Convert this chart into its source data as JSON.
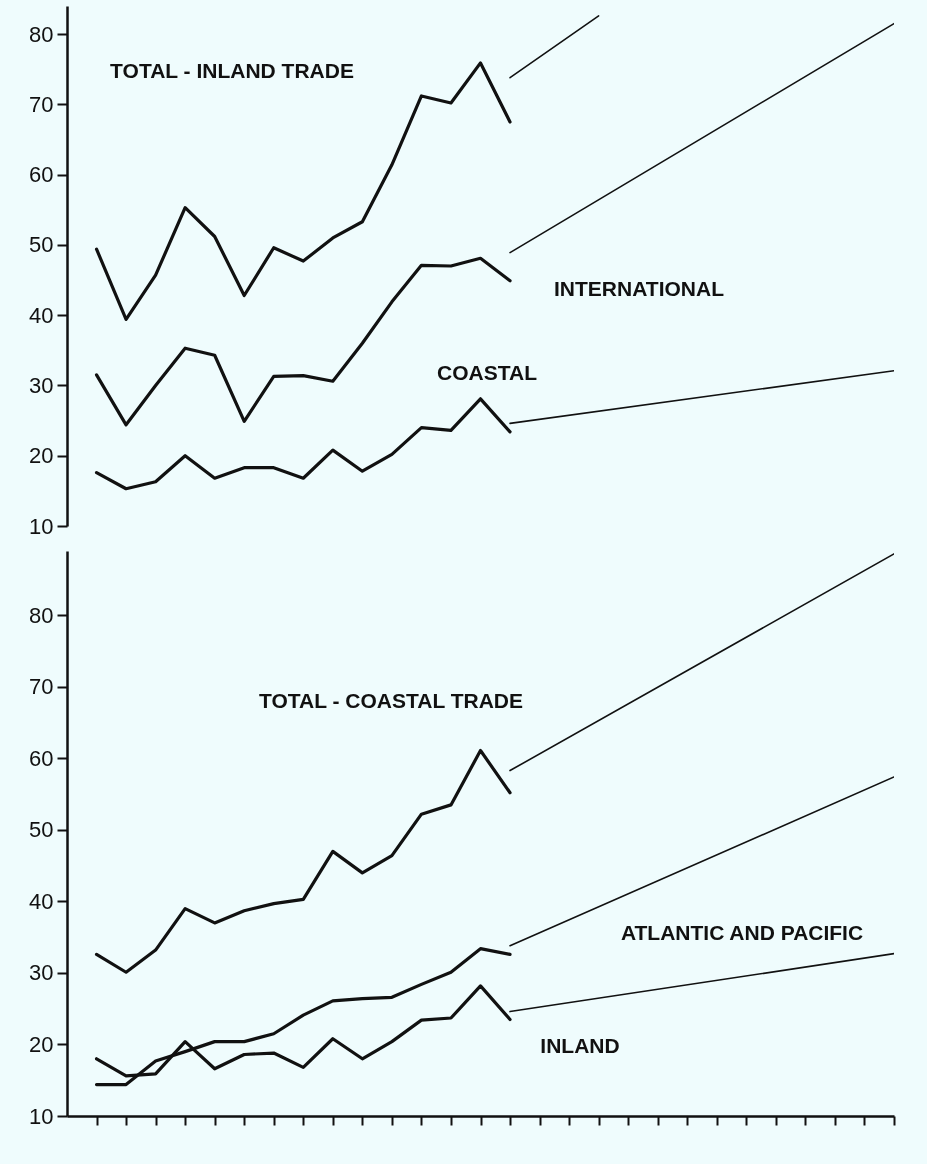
{
  "chart_data": [
    {
      "type": "line",
      "categories": [
        null,
        null,
        null,
        null,
        null,
        null,
        null,
        null,
        null,
        null,
        null,
        null,
        null,
        null,
        null,
        null,
        null,
        null,
        null,
        null,
        null,
        null,
        null,
        null,
        null,
        null,
        null,
        null
      ],
      "ylim": [
        10,
        84
      ],
      "yticks": [
        10,
        20,
        30,
        40,
        50,
        60,
        70,
        80
      ],
      "tick_labels": "y",
      "series": [
        {
          "color": "#111111",
          "values": [
            49.4,
            39.4,
            45.7,
            55.3,
            51.2,
            42.8,
            49.6,
            47.7,
            51.0,
            53.3,
            61.4,
            71.2,
            70.2,
            75.9,
            67.5,
            null,
            null,
            null,
            null,
            null,
            null,
            null,
            null,
            null,
            null,
            null,
            null,
            null
          ]
        },
        {
          "color": "#111111",
          "values": [
            31.5,
            24.4,
            30.0,
            35.3,
            34.3,
            24.9,
            31.3,
            31.4,
            30.6,
            36.0,
            41.9,
            47.1,
            47.0,
            48.1,
            44.9,
            null,
            null,
            null,
            null,
            null,
            null,
            null,
            null,
            null,
            null,
            null,
            null,
            null
          ]
        },
        {
          "color": "#111111",
          "values": [
            17.6,
            15.3,
            16.3,
            20.0,
            16.8,
            18.3,
            18.3,
            16.8,
            20.8,
            17.8,
            20.2,
            24.0,
            23.6,
            28.1,
            23.4,
            null,
            null,
            null,
            null,
            null,
            null,
            null,
            null,
            null,
            null,
            null,
            null,
            null
          ]
        },
        {
          "color": "#111111",
          "values": [
            null,
            null,
            null,
            null,
            null,
            null,
            null,
            null,
            null,
            null,
            null,
            null,
            null,
            null,
            73.8,
            null,
            null,
            82.6,
            null,
            null,
            null,
            null,
            null,
            null,
            null,
            null,
            null,
            null
          ]
        },
        {
          "color": "#111111",
          "values": [
            null,
            null,
            null,
            null,
            null,
            null,
            null,
            null,
            null,
            null,
            null,
            null,
            null,
            null,
            48.9,
            null,
            null,
            null,
            null,
            null,
            null,
            null,
            null,
            null,
            null,
            null,
            null,
            81.5
          ]
        },
        {
          "color": "#111111",
          "values": [
            null,
            null,
            null,
            null,
            null,
            null,
            null,
            null,
            null,
            null,
            null,
            null,
            null,
            null,
            24.6,
            null,
            null,
            null,
            null,
            null,
            null,
            null,
            null,
            null,
            null,
            null,
            null,
            32.1
          ]
        }
      ],
      "annotations": [
        "TOTAL - INLAND TRADE",
        "INTERNATIONAL",
        "COASTAL"
      ]
    },
    {
      "type": "line",
      "categories": [
        null,
        null,
        null,
        null,
        null,
        null,
        null,
        null,
        null,
        null,
        null,
        null,
        null,
        null,
        null,
        null,
        null,
        null,
        null,
        null,
        null,
        null,
        null,
        null,
        null,
        null,
        null,
        null
      ],
      "ylim": [
        10,
        89
      ],
      "yticks": [
        10,
        20,
        30,
        40,
        50,
        60,
        70,
        80
      ],
      "tick_labels": "y",
      "series": [
        {
          "color": "#111111",
          "values": [
            32.6,
            30.1,
            33.2,
            39.0,
            37.0,
            38.7,
            39.7,
            40.3,
            47.0,
            44.0,
            46.4,
            52.2,
            53.5,
            61.1,
            55.2,
            null,
            null,
            null,
            null,
            null,
            null,
            null,
            null,
            null,
            null,
            null,
            null,
            null
          ]
        },
        {
          "color": "#111111",
          "values": [
            14.4,
            14.4,
            17.7,
            19.0,
            20.4,
            20.4,
            21.5,
            24.1,
            26.1,
            26.4,
            26.6,
            28.4,
            30.1,
            33.4,
            32.6,
            null,
            null,
            null,
            null,
            null,
            null,
            null,
            null,
            null,
            null,
            null,
            null,
            null
          ]
        },
        {
          "color": "#111111",
          "values": [
            18.0,
            15.6,
            15.9,
            20.4,
            16.6,
            18.6,
            18.8,
            16.8,
            20.8,
            18.0,
            20.4,
            23.4,
            23.7,
            28.2,
            23.5,
            null,
            null,
            null,
            null,
            null,
            null,
            null,
            null,
            null,
            null,
            null,
            null,
            null
          ]
        },
        {
          "color": "#111111",
          "values": [
            null,
            null,
            null,
            null,
            null,
            null,
            null,
            null,
            null,
            null,
            null,
            null,
            null,
            null,
            58.3,
            null,
            null,
            null,
            null,
            null,
            null,
            null,
            null,
            null,
            null,
            null,
            null,
            88.6
          ]
        },
        {
          "color": "#111111",
          "values": [
            null,
            null,
            null,
            null,
            null,
            null,
            null,
            null,
            null,
            null,
            null,
            null,
            null,
            null,
            33.8,
            null,
            null,
            null,
            null,
            null,
            null,
            null,
            null,
            null,
            null,
            null,
            null,
            57.4
          ]
        },
        {
          "color": "#111111",
          "values": [
            null,
            null,
            null,
            null,
            null,
            null,
            null,
            null,
            null,
            null,
            null,
            null,
            null,
            null,
            24.6,
            null,
            null,
            null,
            null,
            null,
            null,
            null,
            null,
            null,
            null,
            null,
            null,
            32.7
          ]
        }
      ],
      "annotations": [
        "TOTAL - COASTAL TRADE",
        "ATLANTIC AND PACIFIC",
        "INLAND"
      ]
    }
  ]
}
